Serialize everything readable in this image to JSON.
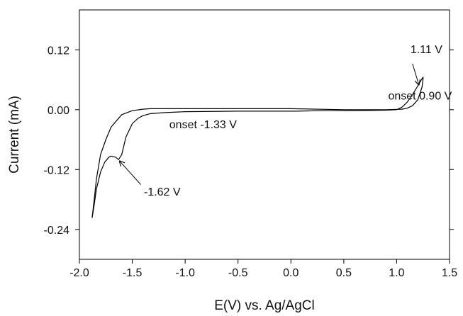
{
  "chart_data": {
    "type": "line",
    "title": "",
    "xlabel": "E(V) vs. Ag/AgCl",
    "ylabel": "Current (mA)",
    "xlim": [
      -2.0,
      1.5
    ],
    "ylim": [
      -0.3,
      0.2
    ],
    "x_ticks": [
      -2.0,
      -1.5,
      -1.0,
      -0.5,
      0.0,
      0.5,
      1.0,
      1.5
    ],
    "x_tick_labels": [
      "-2.0",
      "-1.5",
      "-1.0",
      "-0.5",
      "0.0",
      "0.5",
      "1.0",
      "1.5"
    ],
    "y_ticks": [
      -0.24,
      -0.12,
      0.0,
      0.12
    ],
    "y_tick_labels": [
      "-0.24",
      "-0.12",
      "0.00",
      "0.12"
    ],
    "grid": false,
    "series": [
      {
        "color": "#000000",
        "x": [
          -1.88,
          -1.86,
          -1.84,
          -1.8,
          -1.76,
          -1.72,
          -1.7,
          -1.66,
          -1.63,
          -1.6,
          -1.56,
          -1.5,
          -1.45,
          -1.4,
          -1.33,
          -1.2,
          -1.0,
          -0.5,
          0.0,
          0.05,
          0.3,
          0.6,
          0.9,
          1.0,
          1.05,
          1.1,
          1.15,
          1.2,
          1.24,
          1.25,
          1.25,
          1.24,
          1.2,
          1.15,
          1.1,
          1.05,
          0.9,
          0.5,
          0.0,
          -0.5,
          -1.0,
          -1.2,
          -1.33,
          -1.4,
          -1.5,
          -1.6,
          -1.7,
          -1.75,
          -1.8,
          -1.84,
          -1.86,
          -1.88
        ],
        "y": [
          -0.217,
          -0.19,
          -0.16,
          -0.125,
          -0.105,
          -0.095,
          -0.093,
          -0.095,
          -0.1,
          -0.09,
          -0.055,
          -0.028,
          -0.018,
          -0.012,
          -0.008,
          -0.006,
          -0.004,
          -0.003,
          -0.003,
          -0.003,
          -0.002,
          -0.002,
          -0.001,
          0.0,
          0.005,
          0.015,
          0.03,
          0.048,
          0.062,
          0.065,
          0.062,
          0.045,
          0.02,
          0.008,
          0.003,
          0.001,
          0.0,
          0.0,
          0.002,
          0.002,
          0.002,
          0.002,
          0.002,
          0.001,
          -0.002,
          -0.01,
          -0.035,
          -0.06,
          -0.09,
          -0.14,
          -0.18,
          -0.217
        ]
      }
    ],
    "annotations": [
      {
        "text": "1.11 V",
        "text_x": 1.13,
        "text_y": 0.113,
        "arrow_from": [
          1.15,
          0.092
        ],
        "arrow_to": [
          1.21,
          0.05
        ]
      },
      {
        "text": "onset 0.90 V",
        "text_x": 0.92,
        "text_y": 0.02
      },
      {
        "text": "onset -1.33 V",
        "text_x": -1.15,
        "text_y": -0.037
      },
      {
        "text": "-1.62 V",
        "text_x": -1.39,
        "text_y": -0.172,
        "arrow_from": [
          -1.42,
          -0.15
        ],
        "arrow_to": [
          -1.62,
          -0.103
        ]
      }
    ]
  }
}
